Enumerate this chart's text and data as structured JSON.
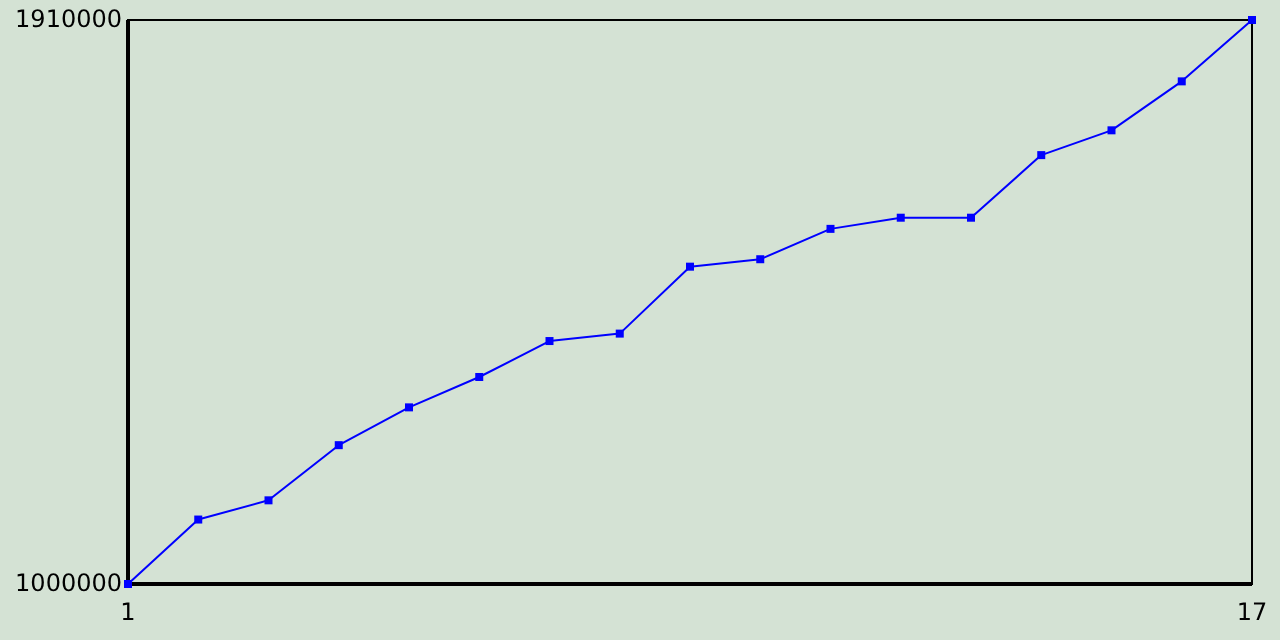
{
  "chart_data": {
    "type": "line",
    "x": [
      1,
      2,
      3,
      4,
      5,
      6,
      7,
      8,
      9,
      10,
      11,
      12,
      13,
      14,
      15,
      16,
      17
    ],
    "series": [
      {
        "color": "#0000ff",
        "values": [
          1000000,
          1104000,
          1135000,
          1224000,
          1285000,
          1334000,
          1392000,
          1404000,
          1512000,
          1524000,
          1573000,
          1591000,
          1591000,
          1692000,
          1732000,
          1811000,
          1910000
        ]
      }
    ],
    "xlim": [
      1,
      17
    ],
    "xticks": [
      1,
      17
    ],
    "ylim": [
      1000000,
      1910000
    ],
    "yticks": [
      1000000,
      1910000
    ],
    "marker": "square",
    "line_style": "solid"
  }
}
